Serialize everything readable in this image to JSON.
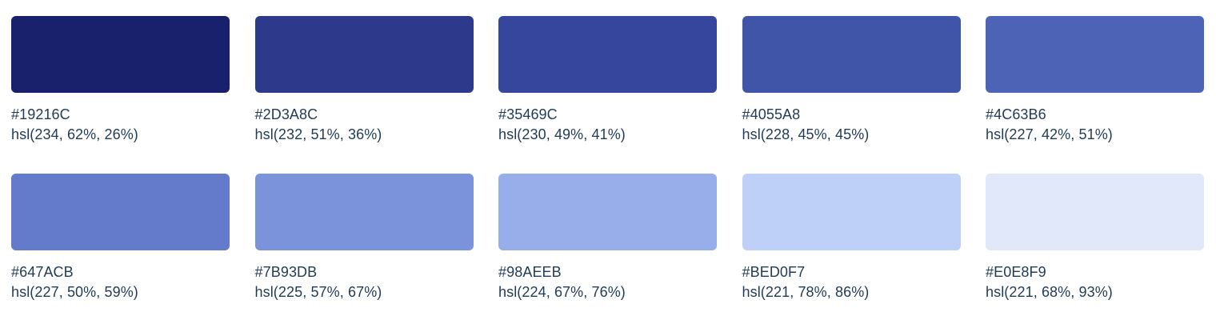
{
  "swatches": [
    {
      "hex": "#19216C",
      "hsl": "hsl(234, 62%, 26%)",
      "color": "#19216C"
    },
    {
      "hex": "#2D3A8C",
      "hsl": "hsl(232, 51%, 36%)",
      "color": "#2D3A8C"
    },
    {
      "hex": "#35469C",
      "hsl": "hsl(230, 49%, 41%)",
      "color": "#35469C"
    },
    {
      "hex": "#4055A8",
      "hsl": "hsl(228, 45%, 45%)",
      "color": "#4055A8"
    },
    {
      "hex": "#4C63B6",
      "hsl": "hsl(227, 42%, 51%)",
      "color": "#4C63B6"
    },
    {
      "hex": "#647ACB",
      "hsl": "hsl(227, 50%, 59%)",
      "color": "#647ACB"
    },
    {
      "hex": "#7B93DB",
      "hsl": "hsl(225, 57%, 67%)",
      "color": "#7B93DB"
    },
    {
      "hex": "#98AEEB",
      "hsl": "hsl(224, 67%, 76%)",
      "color": "#98AEEB"
    },
    {
      "hex": "#BED0F7",
      "hsl": "hsl(221, 78%, 86%)",
      "color": "#BED0F7"
    },
    {
      "hex": "#E0E8F9",
      "hsl": "hsl(221, 68%, 93%)",
      "color": "#E0E8F9"
    }
  ],
  "text_color": "#1f3b57"
}
